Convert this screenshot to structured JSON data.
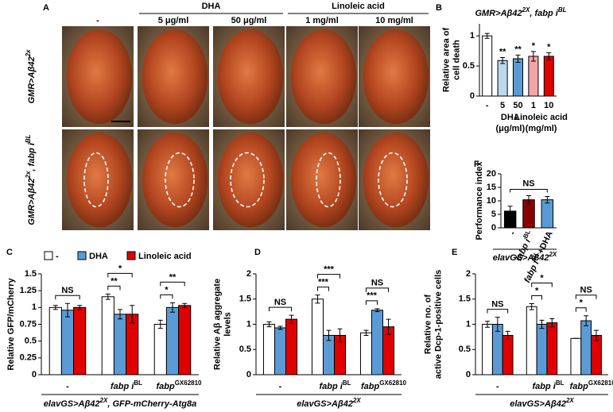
{
  "panel_a": {
    "panel": "A",
    "groups": [
      "DHA",
      "Linoleic acid"
    ],
    "columns": [
      "-",
      "5 μg/ml",
      "50 μg/ml",
      "1 mg/ml",
      "10 mg/ml"
    ],
    "rows": [
      [
        {
          "text": "GMR>Aβ42",
          "sup": "2x"
        }
      ],
      [
        {
          "text": "GMR>Aβ42",
          "sup": "2x"
        },
        {
          "text": ", fabp i",
          "sup": "BL"
        }
      ]
    ]
  },
  "chart_data": [
    {
      "type": "bar",
      "panel": "B",
      "title": [
        {
          "text": "GMR>Aβ42",
          "sup": "2X"
        },
        {
          "text": ", fabp i",
          "sup": "BL"
        }
      ],
      "ylabel": [
        "Relative area of",
        "cell death"
      ],
      "categories": [
        "-",
        "5",
        "50",
        "1",
        "10"
      ],
      "values": [
        1.0,
        0.59,
        0.62,
        0.66,
        0.66
      ],
      "errors": [
        0.04,
        0.05,
        0.06,
        0.08,
        0.06
      ],
      "colors": [
        "#ffffff",
        "#bdd7ee",
        "#5b9bd5",
        "#f4a6a6",
        "#e00000"
      ],
      "annotations": [
        null,
        "**",
        "**",
        "*",
        "*"
      ],
      "groups": [
        {
          "label": "DHA",
          "unit": "(μg/ml)",
          "from": 1,
          "to": 2
        },
        {
          "label": "Linoleic acid",
          "unit": "(mg/ml)",
          "from": 3,
          "to": 4
        }
      ],
      "ylim": [
        0,
        1.2
      ],
      "yticks": [
        0,
        0.5,
        1
      ]
    },
    {
      "type": "grouped_bar",
      "panel": "C",
      "ylabel": [
        "Relative GFP/mCherry"
      ],
      "xlabel": [
        {
          "text": "elavGS>Aβ42",
          "sup": "2X"
        },
        {
          "text": ", GFP-mCherry-Atg8a"
        }
      ],
      "categories": [
        "-",
        {
          "text": "fabp i",
          "sup": "BL"
        },
        {
          "text": "fabp",
          "sup": "GX62810"
        }
      ],
      "series": [
        {
          "name": "-",
          "color": "#ffffff",
          "values": [
            1.0,
            1.16,
            0.75
          ],
          "errors": [
            0.03,
            0.04,
            0.06
          ]
        },
        {
          "name": "DHA",
          "color": "#5b9bd5",
          "values": [
            0.96,
            0.9,
            1.0
          ],
          "errors": [
            0.1,
            0.07,
            0.07
          ]
        },
        {
          "name": "Linoleic acid",
          "color": "#e00000",
          "values": [
            1.0,
            0.9,
            1.03
          ],
          "errors": [
            0.03,
            0.13,
            0.03
          ]
        }
      ],
      "annotations": [
        {
          "text": "NS",
          "group": 0,
          "from": 0,
          "to": 2
        },
        {
          "text": "**",
          "group": 1,
          "from": 0,
          "to": 1
        },
        {
          "text": "*",
          "group": 1,
          "from": 0,
          "to": 2
        },
        {
          "text": "*",
          "group": 2,
          "from": 0,
          "to": 1
        },
        {
          "text": "**",
          "group": 2,
          "from": 0,
          "to": 2
        }
      ],
      "ylim": [
        0,
        1.5
      ],
      "yticks": [
        0,
        0.25,
        0.5,
        0.75,
        1,
        1.25,
        1.5
      ]
    },
    {
      "type": "grouped_bar",
      "panel": "D",
      "ylabel": [
        "Relative Aβ aggregate",
        "levels"
      ],
      "xlabel": [
        {
          "text": "elavGS>Aβ42",
          "sup": "2X"
        }
      ],
      "categories": [
        "-",
        {
          "text": "fabp i",
          "sup": "BL"
        },
        {
          "text": "fabp",
          "sup": "GX62810"
        }
      ],
      "series": [
        {
          "color": "#ffffff",
          "values": [
            1.0,
            1.5,
            0.83
          ],
          "errors": [
            0.05,
            0.08,
            0.05
          ]
        },
        {
          "color": "#5b9bd5",
          "values": [
            0.93,
            0.78,
            1.28
          ],
          "errors": [
            0.03,
            0.1,
            0.03
          ]
        },
        {
          "color": "#e00000",
          "values": [
            1.1,
            0.78,
            0.95
          ],
          "errors": [
            0.08,
            0.13,
            0.15
          ]
        }
      ],
      "annotations": [
        {
          "text": "NS",
          "group": 0,
          "from": 0,
          "to": 2
        },
        {
          "text": "***",
          "group": 1,
          "from": 0,
          "to": 1
        },
        {
          "text": "***",
          "group": 1,
          "from": 0,
          "to": 2
        },
        {
          "text": "***",
          "group": 2,
          "from": 0,
          "to": 1
        },
        {
          "text": "NS",
          "group": 2,
          "from": 0,
          "to": 2
        }
      ],
      "ylim": [
        0,
        2
      ],
      "yticks": [
        0,
        0.5,
        1,
        1.5,
        2
      ]
    },
    {
      "type": "grouped_bar",
      "panel": "E",
      "ylabel": [
        "Relative no. of",
        "active Dcp-1-positive cells"
      ],
      "xlabel": [
        {
          "text": "elavGS>Aβ42",
          "sup": "2X"
        }
      ],
      "categories": [
        "-",
        {
          "text": "fabp i",
          "sup": "BL"
        },
        {
          "text": "fabp",
          "sup": "GX62810"
        }
      ],
      "series": [
        {
          "color": "#ffffff",
          "values": [
            1.0,
            1.35,
            0.72
          ],
          "errors": [
            0.06,
            0.06,
            0
          ]
        },
        {
          "color": "#5b9bd5",
          "values": [
            1.0,
            1.0,
            1.07
          ],
          "errors": [
            0.14,
            0.08,
            0.1
          ]
        },
        {
          "color": "#e00000",
          "values": [
            0.78,
            1.03,
            0.78
          ],
          "errors": [
            0.08,
            0.08,
            0.1
          ]
        }
      ],
      "annotations": [
        {
          "text": "NS",
          "group": 0,
          "from": 0,
          "to": 2
        },
        {
          "text": "*",
          "group": 1,
          "from": 0,
          "to": 1
        },
        {
          "text": "*",
          "group": 1,
          "from": 0,
          "to": 2
        },
        {
          "text": "*",
          "group": 2,
          "from": 0,
          "to": 1
        },
        {
          "text": "NS",
          "group": 2,
          "from": 0,
          "to": 2
        }
      ],
      "ylim": [
        0,
        2
      ],
      "yticks": [
        0,
        0.5,
        1,
        1.5,
        2
      ]
    },
    {
      "type": "bar",
      "panel": "F",
      "ylabel": [
        "Performance index"
      ],
      "xlabel": [
        {
          "text": "elavGS>Aβ42",
          "sup": "2X"
        }
      ],
      "categories": [
        "-",
        {
          "text": "fabp i",
          "sup": "BL"
        },
        [
          {
            "text": "fabp i",
            "sup": "BL"
          },
          {
            "text": "+DHA"
          }
        ]
      ],
      "values": [
        6.2,
        10.4,
        10.4
      ],
      "errors": [
        1.8,
        1.5,
        1.2
      ],
      "colors": [
        "#000000",
        "#8b0000",
        "#5b9bd5"
      ],
      "span_annotation": "NS",
      "ylim": [
        0,
        20
      ],
      "yticks": [
        0,
        5,
        10,
        15,
        20
      ]
    }
  ]
}
